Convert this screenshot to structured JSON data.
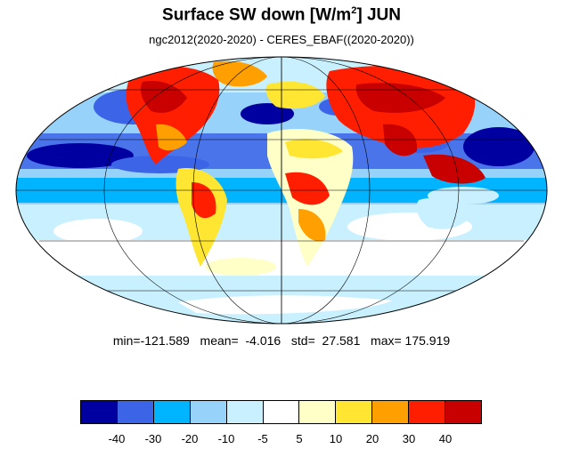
{
  "title": {
    "main": "Surface SW down [W/m",
    "sup": "2",
    "tail": "]  JUN"
  },
  "subtitle": "ngc2012(2020-2020) - CERES_EBAF((2020-2020))",
  "stats": {
    "min_label": "min=",
    "min": "-121.589",
    "mean_label": "mean=",
    "mean": "-4.016",
    "std_label": "std=",
    "std": "27.581",
    "max_label": "max=",
    "max": "175.919"
  },
  "colorbar": {
    "colors": [
      "#0000a0",
      "#3c64e6",
      "#00b4ff",
      "#96d2fa",
      "#c8f0ff",
      "#ffffff",
      "#ffffc8",
      "#ffe632",
      "#ffa000",
      "#ff1e00",
      "#c80000"
    ],
    "labels": [
      "-40",
      "-30",
      "-20",
      "-10",
      "-5",
      "5",
      "10",
      "20",
      "30",
      "40"
    ]
  },
  "map_colors": {
    "ocean_base": "#96d2fa",
    "coast": "#000000",
    "grid": "#000000"
  }
}
